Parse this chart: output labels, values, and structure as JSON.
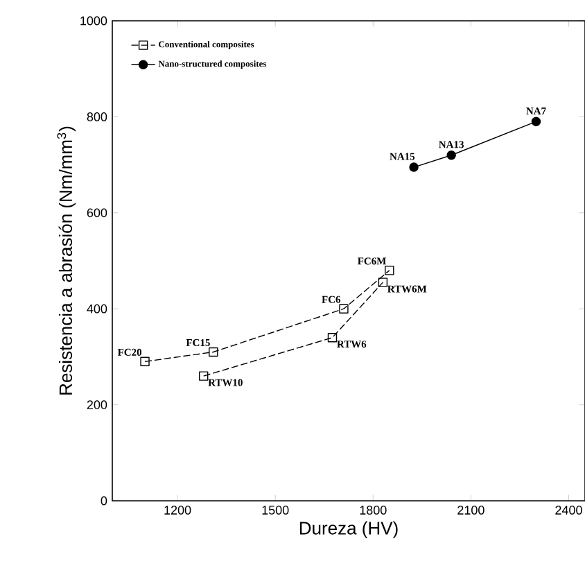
{
  "chart_data": {
    "type": "line",
    "xlabel": "Dureza (HV)",
    "ylabel": "Resistencia a abrasión (Nm/mm$^{3}$)",
    "xlim": [
      1000,
      2450
    ],
    "ylim": [
      0,
      1000
    ],
    "xticks": [
      1200,
      1500,
      1800,
      2100,
      2400
    ],
    "yticks": [
      0,
      200,
      400,
      600,
      800,
      1000
    ],
    "legend": "top left",
    "grid": false,
    "series": [
      {
        "name": "Conventional composites",
        "color": "#000000",
        "marker": "square",
        "line_style": "dashed",
        "x": [
          1100,
          1310,
          1710,
          1850
        ],
        "values": [
          290,
          310,
          400,
          480
        ]
      },
      {
        "color": "#000000",
        "marker": "square",
        "line_style": "dashed",
        "x": [
          1280,
          1675,
          1830
        ],
        "values": [
          260,
          340,
          455
        ]
      },
      {
        "name": "Nano-structured composites",
        "color": "#000000",
        "marker": "circle",
        "line_style": "solid",
        "x": [
          1925,
          2040,
          2300
        ],
        "values": [
          695,
          720,
          790
        ]
      }
    ],
    "annotations": [
      {
        "text": "FC20",
        "x": 1100,
        "y": 290
      },
      {
        "text": "FC15",
        "x": 1310,
        "y": 310
      },
      {
        "text": "FC6",
        "x": 1710,
        "y": 400
      },
      {
        "text": "FC6M",
        "x": 1850,
        "y": 480
      },
      {
        "text": "RTW10",
        "x": 1280,
        "y": 260
      },
      {
        "text": "RTW6",
        "x": 1675,
        "y": 340
      },
      {
        "text": "RTW6M",
        "x": 1830,
        "y": 455
      },
      {
        "text": "NA15",
        "x": 1925,
        "y": 695
      },
      {
        "text": "NA13",
        "x": 2040,
        "y": 720
      },
      {
        "text": "NA7",
        "x": 2300,
        "y": 790
      }
    ]
  }
}
